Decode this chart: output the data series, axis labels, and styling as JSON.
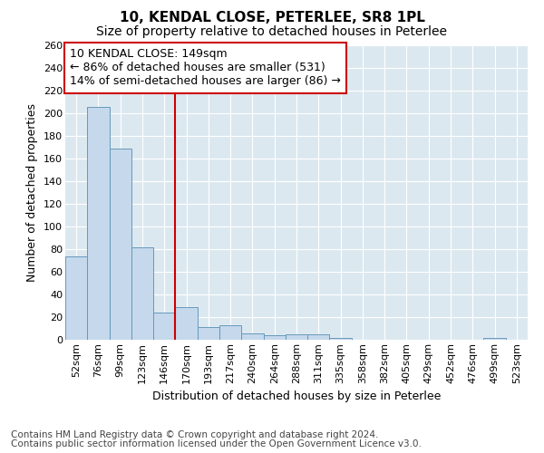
{
  "title": "10, KENDAL CLOSE, PETERLEE, SR8 1PL",
  "subtitle": "Size of property relative to detached houses in Peterlee",
  "xlabel": "Distribution of detached houses by size in Peterlee",
  "ylabel": "Number of detached properties",
  "categories": [
    "52sqm",
    "76sqm",
    "99sqm",
    "123sqm",
    "146sqm",
    "170sqm",
    "193sqm",
    "217sqm",
    "240sqm",
    "264sqm",
    "288sqm",
    "311sqm",
    "335sqm",
    "358sqm",
    "382sqm",
    "405sqm",
    "429sqm",
    "452sqm",
    "476sqm",
    "499sqm",
    "523sqm"
  ],
  "values": [
    74,
    206,
    169,
    82,
    24,
    29,
    11,
    13,
    6,
    4,
    5,
    5,
    2,
    0,
    0,
    0,
    0,
    0,
    0,
    2,
    0
  ],
  "bar_color": "#c5d8ec",
  "bar_edge_color": "#6699bb",
  "property_line_x": 4.5,
  "property_label": "10 KENDAL CLOSE: 149sqm",
  "annotation_line1": "← 86% of detached houses are smaller (531)",
  "annotation_line2": "14% of semi-detached houses are larger (86) →",
  "line_color": "#cc0000",
  "annotation_box_edge_color": "#cc0000",
  "ylim": [
    0,
    260
  ],
  "yticks": [
    0,
    20,
    40,
    60,
    80,
    100,
    120,
    140,
    160,
    180,
    200,
    220,
    240,
    260
  ],
  "background_color": "#dce8f0",
  "fig_background": "#ffffff",
  "grid_color": "#ffffff",
  "footer_line1": "Contains HM Land Registry data © Crown copyright and database right 2024.",
  "footer_line2": "Contains public sector information licensed under the Open Government Licence v3.0.",
  "title_fontsize": 11,
  "subtitle_fontsize": 10,
  "axis_label_fontsize": 9,
  "tick_fontsize": 8,
  "annotation_fontsize": 9,
  "footer_fontsize": 7.5
}
